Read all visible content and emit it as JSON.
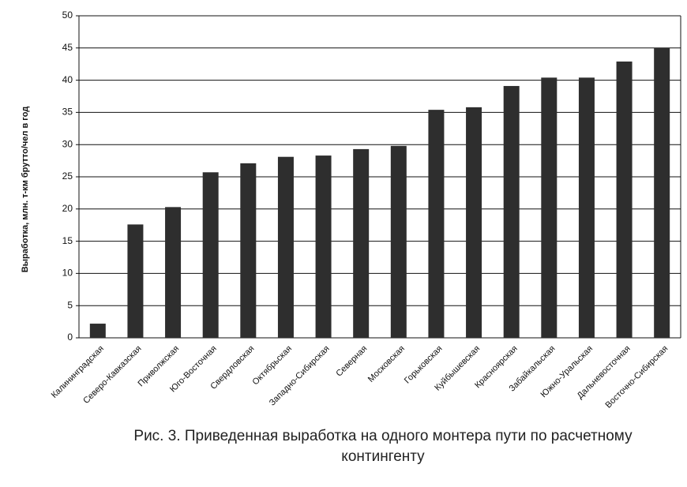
{
  "chart_data": {
    "type": "bar",
    "y_label": "Выработка, млн. т-км брутто/чел в год",
    "caption": "Рис. 3. Приведенная выработка на одного монтера пути по расчетному контингенту",
    "categories": [
      "Калининградская",
      "Северо-Кавказская",
      "Приволжская",
      "Юго-Восточная",
      "Свердловская",
      "Октябрьская",
      "Западно-Сибирская",
      "Северная",
      "Московская",
      "Горьковская",
      "Куйбышевская",
      "Красноярская",
      "Забайкальская",
      "Южно-Уральская",
      "Дальневосточная",
      "Восточно-Сибирская"
    ],
    "values": [
      2.2,
      17.6,
      20.3,
      25.7,
      27.1,
      28.1,
      28.3,
      29.3,
      29.8,
      35.4,
      35.8,
      39.1,
      40.4,
      40.4,
      42.9,
      45
    ],
    "color": "#2e2e2e",
    "ylim": [
      0,
      50
    ],
    "yticks": [
      0,
      5,
      10,
      15,
      20,
      25,
      30,
      35,
      40,
      45,
      50
    ],
    "grid": true
  }
}
